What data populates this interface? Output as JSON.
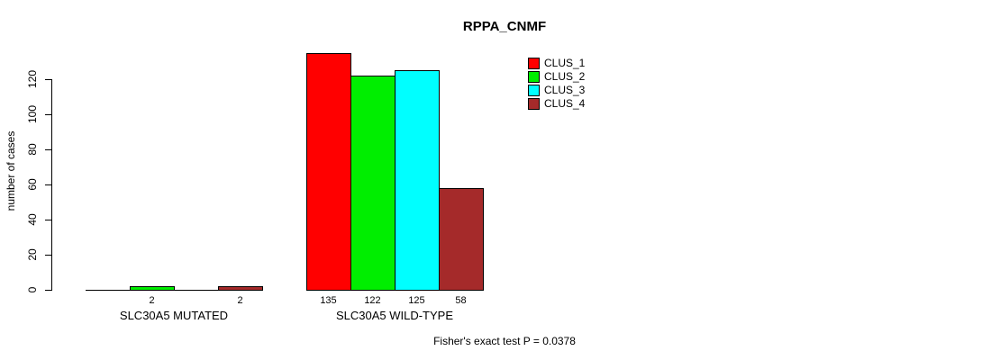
{
  "title": "RPPA_CNMF",
  "footer": "Fisher's exact test P = 0.0378",
  "chart_data": {
    "type": "bar",
    "title": "RPPA_CNMF",
    "xlabel": "",
    "ylabel": "number of cases",
    "ylim": [
      0,
      135
    ],
    "yticks": [
      0,
      20,
      40,
      60,
      80,
      100,
      120
    ],
    "grid": false,
    "legend_position": "top-right",
    "series": [
      {
        "name": "CLUS_1",
        "color": "#FF0000"
      },
      {
        "name": "CLUS_2",
        "color": "#00EE00"
      },
      {
        "name": "CLUS_3",
        "color": "#00FFFF"
      },
      {
        "name": "CLUS_4",
        "color": "#A52A2A"
      }
    ],
    "groups": [
      {
        "label": "SLC30A5 MUTATED",
        "values": [
          0,
          2,
          0,
          2
        ]
      },
      {
        "label": "SLC30A5 WILD-TYPE",
        "values": [
          135,
          122,
          125,
          58
        ]
      }
    ],
    "annotation": "Fisher's exact test P = 0.0378"
  }
}
